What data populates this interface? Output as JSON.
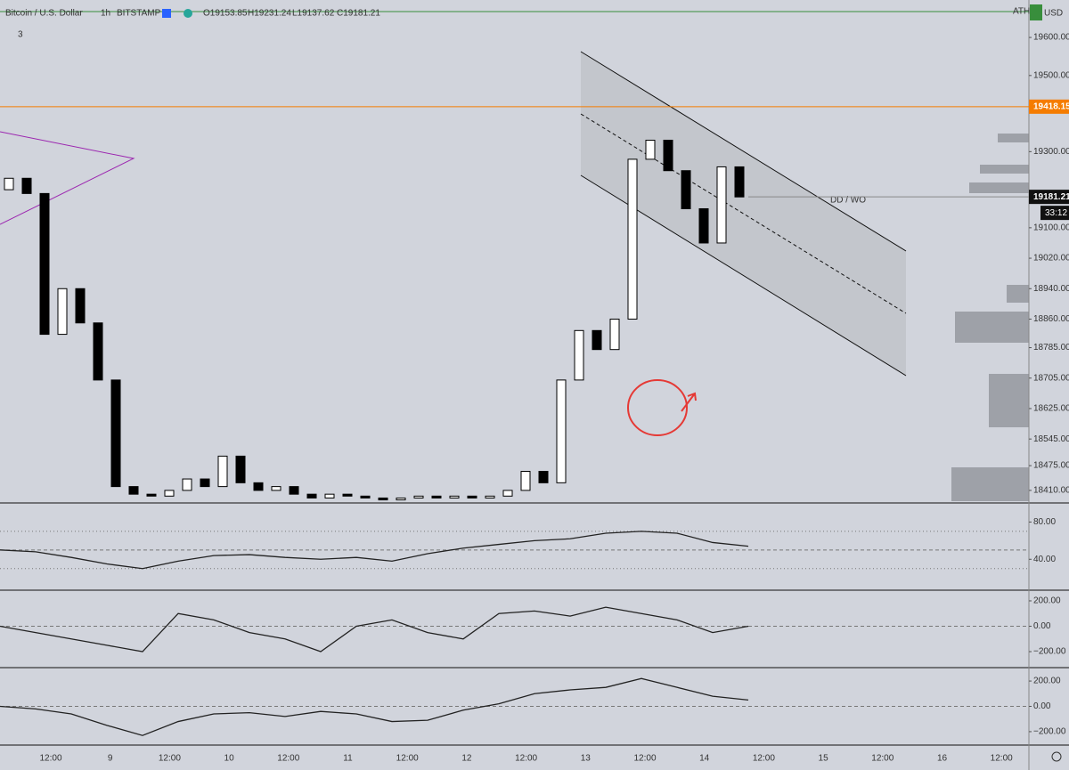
{
  "header": {
    "symbol": "Bitcoin / U.S. Dollar",
    "interval": "1h",
    "exchange": "BITSTAMP",
    "open": "O19153.85",
    "high": "H19231.24",
    "low": "L19137.62",
    "close": "C19181.21",
    "indicator_count": "3"
  },
  "time_axis": [
    "12:00",
    "9",
    "12:00",
    "10",
    "12:00",
    "11",
    "12:00",
    "12",
    "12:00",
    "13",
    "12:00",
    "14",
    "12:00",
    "15",
    "12:00",
    "16",
    "12:00"
  ],
  "chart_data": [
    {
      "type": "candlestick",
      "color_up": "#ffffff",
      "color_down": "#000000",
      "open": [
        19200,
        19230,
        19190,
        18820,
        18940,
        18850,
        18700,
        18420,
        18400,
        18395,
        18410,
        18440,
        18420,
        18500,
        18430,
        18410,
        18420,
        18400,
        18390,
        18400,
        18395,
        18390,
        18385,
        18390,
        18395,
        18390,
        18395,
        18390,
        18395,
        18410,
        18460,
        18430,
        18700,
        18830,
        18780,
        18860,
        19280,
        19330,
        19250,
        19150,
        19060,
        19260
      ],
      "close": [
        19230,
        19190,
        18820,
        18940,
        18850,
        18700,
        18420,
        18400,
        18395,
        18410,
        18440,
        18420,
        18500,
        18430,
        18410,
        18420,
        18400,
        18390,
        18400,
        18395,
        18390,
        18385,
        18390,
        18395,
        18390,
        18395,
        18390,
        18395,
        18410,
        18460,
        18430,
        18700,
        18830,
        18780,
        18860,
        19280,
        19330,
        19250,
        19150,
        19060,
        19260,
        19181
      ],
      "ylim": [
        18377,
        19675
      ],
      "yticks": [
        {
          "value": 19600,
          "label": "19600.00"
        },
        {
          "value": 19500,
          "label": "19500.00"
        },
        {
          "value": 19300,
          "label": "19300.00"
        },
        {
          "value": 19100,
          "label": "19100.00"
        },
        {
          "value": 19020,
          "label": "19020.00"
        },
        {
          "value": 18940,
          "label": "18940.00"
        },
        {
          "value": 18860,
          "label": "18860.00"
        },
        {
          "value": 18785,
          "label": "18785.00"
        },
        {
          "value": 18705,
          "label": "18705.00"
        },
        {
          "value": 18625,
          "label": "18625.00"
        },
        {
          "value": 18545,
          "label": "18545.00"
        },
        {
          "value": 18475,
          "label": "18475.00"
        },
        {
          "value": 18410,
          "label": "18410.00"
        }
      ],
      "reference_line": {
        "value": 19418.15,
        "label": "19418.15",
        "color": "#f57c00"
      },
      "last_price": {
        "value": 19181.21,
        "label": "19181.21"
      },
      "countdown": "33:12",
      "annotation": "DD / WO",
      "ath_label": "ATH",
      "currency": "USD"
    },
    {
      "type": "line",
      "color": "#222222",
      "values": [
        50,
        48,
        42,
        35,
        30,
        38,
        44,
        45,
        42,
        40,
        42,
        38,
        46,
        52,
        56,
        60,
        62,
        68,
        70,
        68,
        58,
        54
      ],
      "levels": [
        70,
        50,
        30
      ],
      "ylim": [
        6.8,
        100.5
      ],
      "yticks": [
        {
          "value": 80,
          "label": "80.00"
        },
        {
          "value": 40,
          "label": "40.00"
        }
      ]
    },
    {
      "type": "line",
      "color": "#222222",
      "values": [
        0,
        -50,
        -100,
        -150,
        -200,
        100,
        50,
        -50,
        -100,
        -200,
        0,
        50,
        -50,
        -100,
        100,
        120,
        80,
        150,
        100,
        50,
        -50,
        0
      ],
      "levels": [
        0
      ],
      "ylim": [
        -326,
        284
      ],
      "yticks": [
        {
          "value": 200,
          "label": "200.00"
        },
        {
          "value": 0,
          "label": "0.00"
        },
        {
          "value": -200,
          "label": "−200.00"
        }
      ]
    },
    {
      "type": "line",
      "color": "#222222",
      "values": [
        0,
        -20,
        -60,
        -150,
        -230,
        -120,
        -60,
        -50,
        -80,
        -40,
        -60,
        -120,
        -110,
        -30,
        20,
        100,
        130,
        150,
        220,
        150,
        80,
        50
      ],
      "levels": [
        0
      ],
      "ylim": [
        -306,
        306
      ],
      "yticks": [
        {
          "value": 200,
          "label": "200.00"
        },
        {
          "value": 0,
          "label": "0.00"
        },
        {
          "value": -200,
          "label": "−200.00"
        }
      ]
    }
  ]
}
